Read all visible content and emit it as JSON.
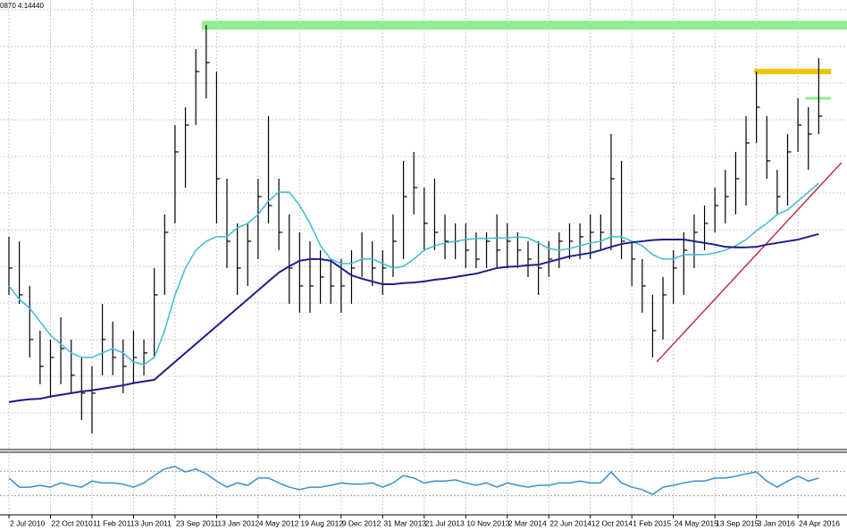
{
  "chart_data": [
    {
      "type": "ohlc",
      "info": "0870 4.14440",
      "categories": [
        "2 Jul 2010",
        null,
        null,
        null,
        "22 Oct 2010",
        null,
        null,
        null,
        "11 Feb 2011",
        null,
        null,
        null,
        "3 Jun 2011",
        null,
        null,
        null,
        "23 Sep 2011",
        null,
        null,
        null,
        "13 Jan 2012",
        null,
        null,
        null,
        "4 May 2012",
        null,
        null,
        null,
        "19 Aug 2012",
        null,
        null,
        null,
        "9 Dec 2012",
        null,
        null,
        null,
        "31 Mar 2013",
        null,
        null,
        null,
        "21 Jul 2013",
        null,
        null,
        null,
        "10 Nov 2013",
        null,
        null,
        null,
        "2 Mar 2014",
        null,
        null,
        null,
        "22 Jun 2014",
        null,
        null,
        null,
        "12 Oct 2014",
        null,
        null,
        null,
        "1 Feb 2015",
        null,
        null,
        null,
        "24 May 2015",
        null,
        null,
        null,
        "13 Sep 2015",
        null,
        null,
        null,
        "3 Jan 2016",
        null,
        null,
        null,
        "24 Apr 2016",
        null,
        null
      ],
      "high": [
        4.196,
        4.188,
        4.108,
        4.028,
        4.012,
        4.052,
        4.012,
        3.98,
        3.964,
        4.076,
        4.044,
        4.012,
        4.028,
        4.012,
        4.14,
        4.236,
        4.396,
        4.428,
        4.532,
        4.575,
        4.492,
        4.3,
        4.22,
        4.22,
        4.3,
        4.412,
        4.3,
        4.236,
        4.204,
        4.188,
        4.172,
        4.156,
        4.156,
        4.172,
        4.204,
        4.188,
        4.172,
        4.236,
        4.332,
        4.348,
        4.284,
        4.3,
        4.236,
        4.22,
        4.22,
        4.204,
        4.204,
        4.236,
        4.22,
        4.204,
        4.188,
        4.188,
        4.188,
        4.204,
        4.22,
        4.22,
        4.236,
        4.236,
        4.38,
        4.332,
        4.188,
        4.156,
        4.092,
        4.124,
        4.172,
        4.204,
        4.236,
        4.252,
        4.284,
        4.316,
        4.348,
        4.412,
        4.492,
        4.412,
        4.316,
        4.38,
        4.444,
        4.428,
        4.516
      ],
      "low": [
        4.092,
        4.076,
        3.98,
        3.932,
        3.908,
        3.932,
        3.916,
        3.868,
        3.844,
        3.948,
        3.948,
        3.916,
        3.932,
        3.948,
        3.98,
        4.092,
        4.22,
        4.284,
        4.396,
        4.444,
        4.22,
        4.14,
        4.092,
        4.108,
        4.156,
        4.22,
        4.172,
        4.076,
        4.06,
        4.06,
        4.076,
        4.076,
        4.06,
        4.076,
        4.124,
        4.108,
        4.092,
        4.124,
        4.156,
        4.236,
        4.172,
        4.172,
        4.156,
        4.156,
        4.14,
        4.14,
        4.14,
        4.14,
        4.14,
        4.14,
        4.124,
        4.092,
        4.124,
        4.14,
        4.156,
        4.156,
        4.156,
        4.172,
        4.172,
        4.156,
        4.108,
        4.06,
        3.98,
        4.012,
        4.076,
        4.092,
        4.14,
        4.172,
        4.204,
        4.22,
        4.236,
        4.252,
        4.364,
        4.3,
        4.236,
        4.252,
        4.348,
        4.316,
        4.38
      ],
      "close": [
        4.14,
        4.092,
        4.012,
        3.964,
        3.98,
        3.996,
        3.948,
        3.916,
        3.916,
        4.012,
        3.98,
        3.964,
        3.98,
        3.988,
        4.092,
        4.204,
        4.348,
        4.396,
        4.492,
        4.508,
        4.3,
        4.188,
        4.14,
        4.188,
        4.268,
        4.252,
        4.204,
        4.14,
        4.108,
        4.108,
        4.124,
        4.108,
        4.108,
        4.14,
        4.156,
        4.14,
        4.14,
        4.188,
        4.268,
        4.284,
        4.22,
        4.204,
        4.188,
        4.188,
        4.172,
        4.156,
        4.188,
        4.172,
        4.188,
        4.172,
        4.156,
        4.14,
        4.156,
        4.188,
        4.188,
        4.196,
        4.204,
        4.204,
        4.3,
        4.188,
        4.156,
        4.108,
        4.028,
        4.092,
        4.14,
        4.172,
        4.204,
        4.22,
        4.252,
        4.268,
        4.3,
        4.364,
        4.428,
        4.332,
        4.268,
        4.348,
        4.396,
        4.38,
        4.412
      ],
      "color": "#000000",
      "ylim": [
        3.815,
        4.62
      ],
      "overlays": [
        {
          "color": "#3cbcd6",
          "values": [
            4.108,
            4.084,
            4.068,
            4.044,
            4.02,
            4.004,
            3.988,
            3.98,
            3.98,
            3.988,
            3.996,
            3.988,
            3.972,
            3.967,
            3.98,
            4.028,
            4.092,
            4.14,
            4.172,
            4.188,
            4.196,
            4.196,
            4.212,
            4.22,
            4.236,
            4.26,
            4.276,
            4.276,
            4.252,
            4.22,
            4.18,
            4.156,
            4.148,
            4.148,
            4.156,
            4.156,
            4.148,
            4.14,
            4.143,
            4.156,
            4.172,
            4.18,
            4.185,
            4.188,
            4.191,
            4.193,
            4.193,
            4.194,
            4.194,
            4.196,
            4.194,
            4.185,
            4.175,
            4.172,
            4.175,
            4.18,
            4.185,
            4.188,
            4.196,
            4.196,
            4.188,
            4.18,
            4.164,
            4.156,
            4.156,
            4.164,
            4.164,
            4.164,
            4.167,
            4.172,
            4.18,
            4.191,
            4.207,
            4.22,
            4.236,
            4.244,
            4.26,
            4.276,
            4.292
          ]
        },
        {
          "color": "#1c1c8e",
          "values": [
            3.9,
            3.903,
            3.905,
            3.906,
            3.91,
            3.913,
            3.916,
            3.919,
            3.921,
            3.924,
            3.927,
            3.93,
            3.934,
            3.937,
            3.94,
            3.956,
            3.972,
            3.988,
            4.004,
            4.02,
            4.036,
            4.052,
            4.068,
            4.084,
            4.1,
            4.116,
            4.132,
            4.143,
            4.153,
            4.156,
            4.156,
            4.153,
            4.14,
            4.127,
            4.121,
            4.116,
            4.111,
            4.111,
            4.113,
            4.114,
            4.116,
            4.119,
            4.121,
            4.124,
            4.127,
            4.13,
            4.135,
            4.14,
            4.142,
            4.143,
            4.145,
            4.146,
            4.151,
            4.156,
            4.161,
            4.164,
            4.167,
            4.172,
            4.178,
            4.183,
            4.186,
            4.188,
            4.19,
            4.191,
            4.191,
            4.191,
            4.188,
            4.185,
            4.182,
            4.178,
            4.177,
            4.177,
            4.178,
            4.182,
            4.185,
            4.188,
            4.191,
            4.196,
            4.201
          ]
        }
      ],
      "lines": [
        {
          "color": "#90ee90",
          "x": [
            18.6,
            81
          ],
          "y": [
            4.575,
            4.575
          ]
        },
        {
          "color": "#f5c400",
          "x": [
            71.8,
            79.2
          ],
          "y": [
            4.492,
            4.492
          ]
        },
        {
          "color": "#90ee90",
          "x": [
            76.7,
            79.2
          ],
          "y": [
            4.444,
            4.444
          ]
        },
        {
          "color": "#c0304a",
          "x": [
            62.4,
            80.2
          ],
          "y": [
            3.972,
            4.329
          ]
        }
      ]
    },
    {
      "type": "line",
      "color": "#3a8fd0",
      "values": [
        59,
        44,
        44,
        47,
        44,
        51,
        47,
        44,
        54,
        51,
        51,
        49,
        44,
        51,
        63,
        74,
        78,
        69,
        74,
        66,
        54,
        44,
        51,
        47,
        59,
        59,
        51,
        44,
        40,
        44,
        44,
        47,
        51,
        49,
        49,
        51,
        44,
        51,
        63,
        59,
        51,
        54,
        54,
        56,
        51,
        47,
        51,
        44,
        51,
        47,
        44,
        47,
        47,
        51,
        51,
        54,
        51,
        51,
        69,
        51,
        44,
        40,
        32,
        44,
        47,
        51,
        54,
        54,
        59,
        59,
        62,
        66,
        69,
        54,
        44,
        54,
        62,
        54,
        59
      ],
      "ylim": [
        0,
        100
      ],
      "levels": [
        30,
        70
      ]
    }
  ]
}
